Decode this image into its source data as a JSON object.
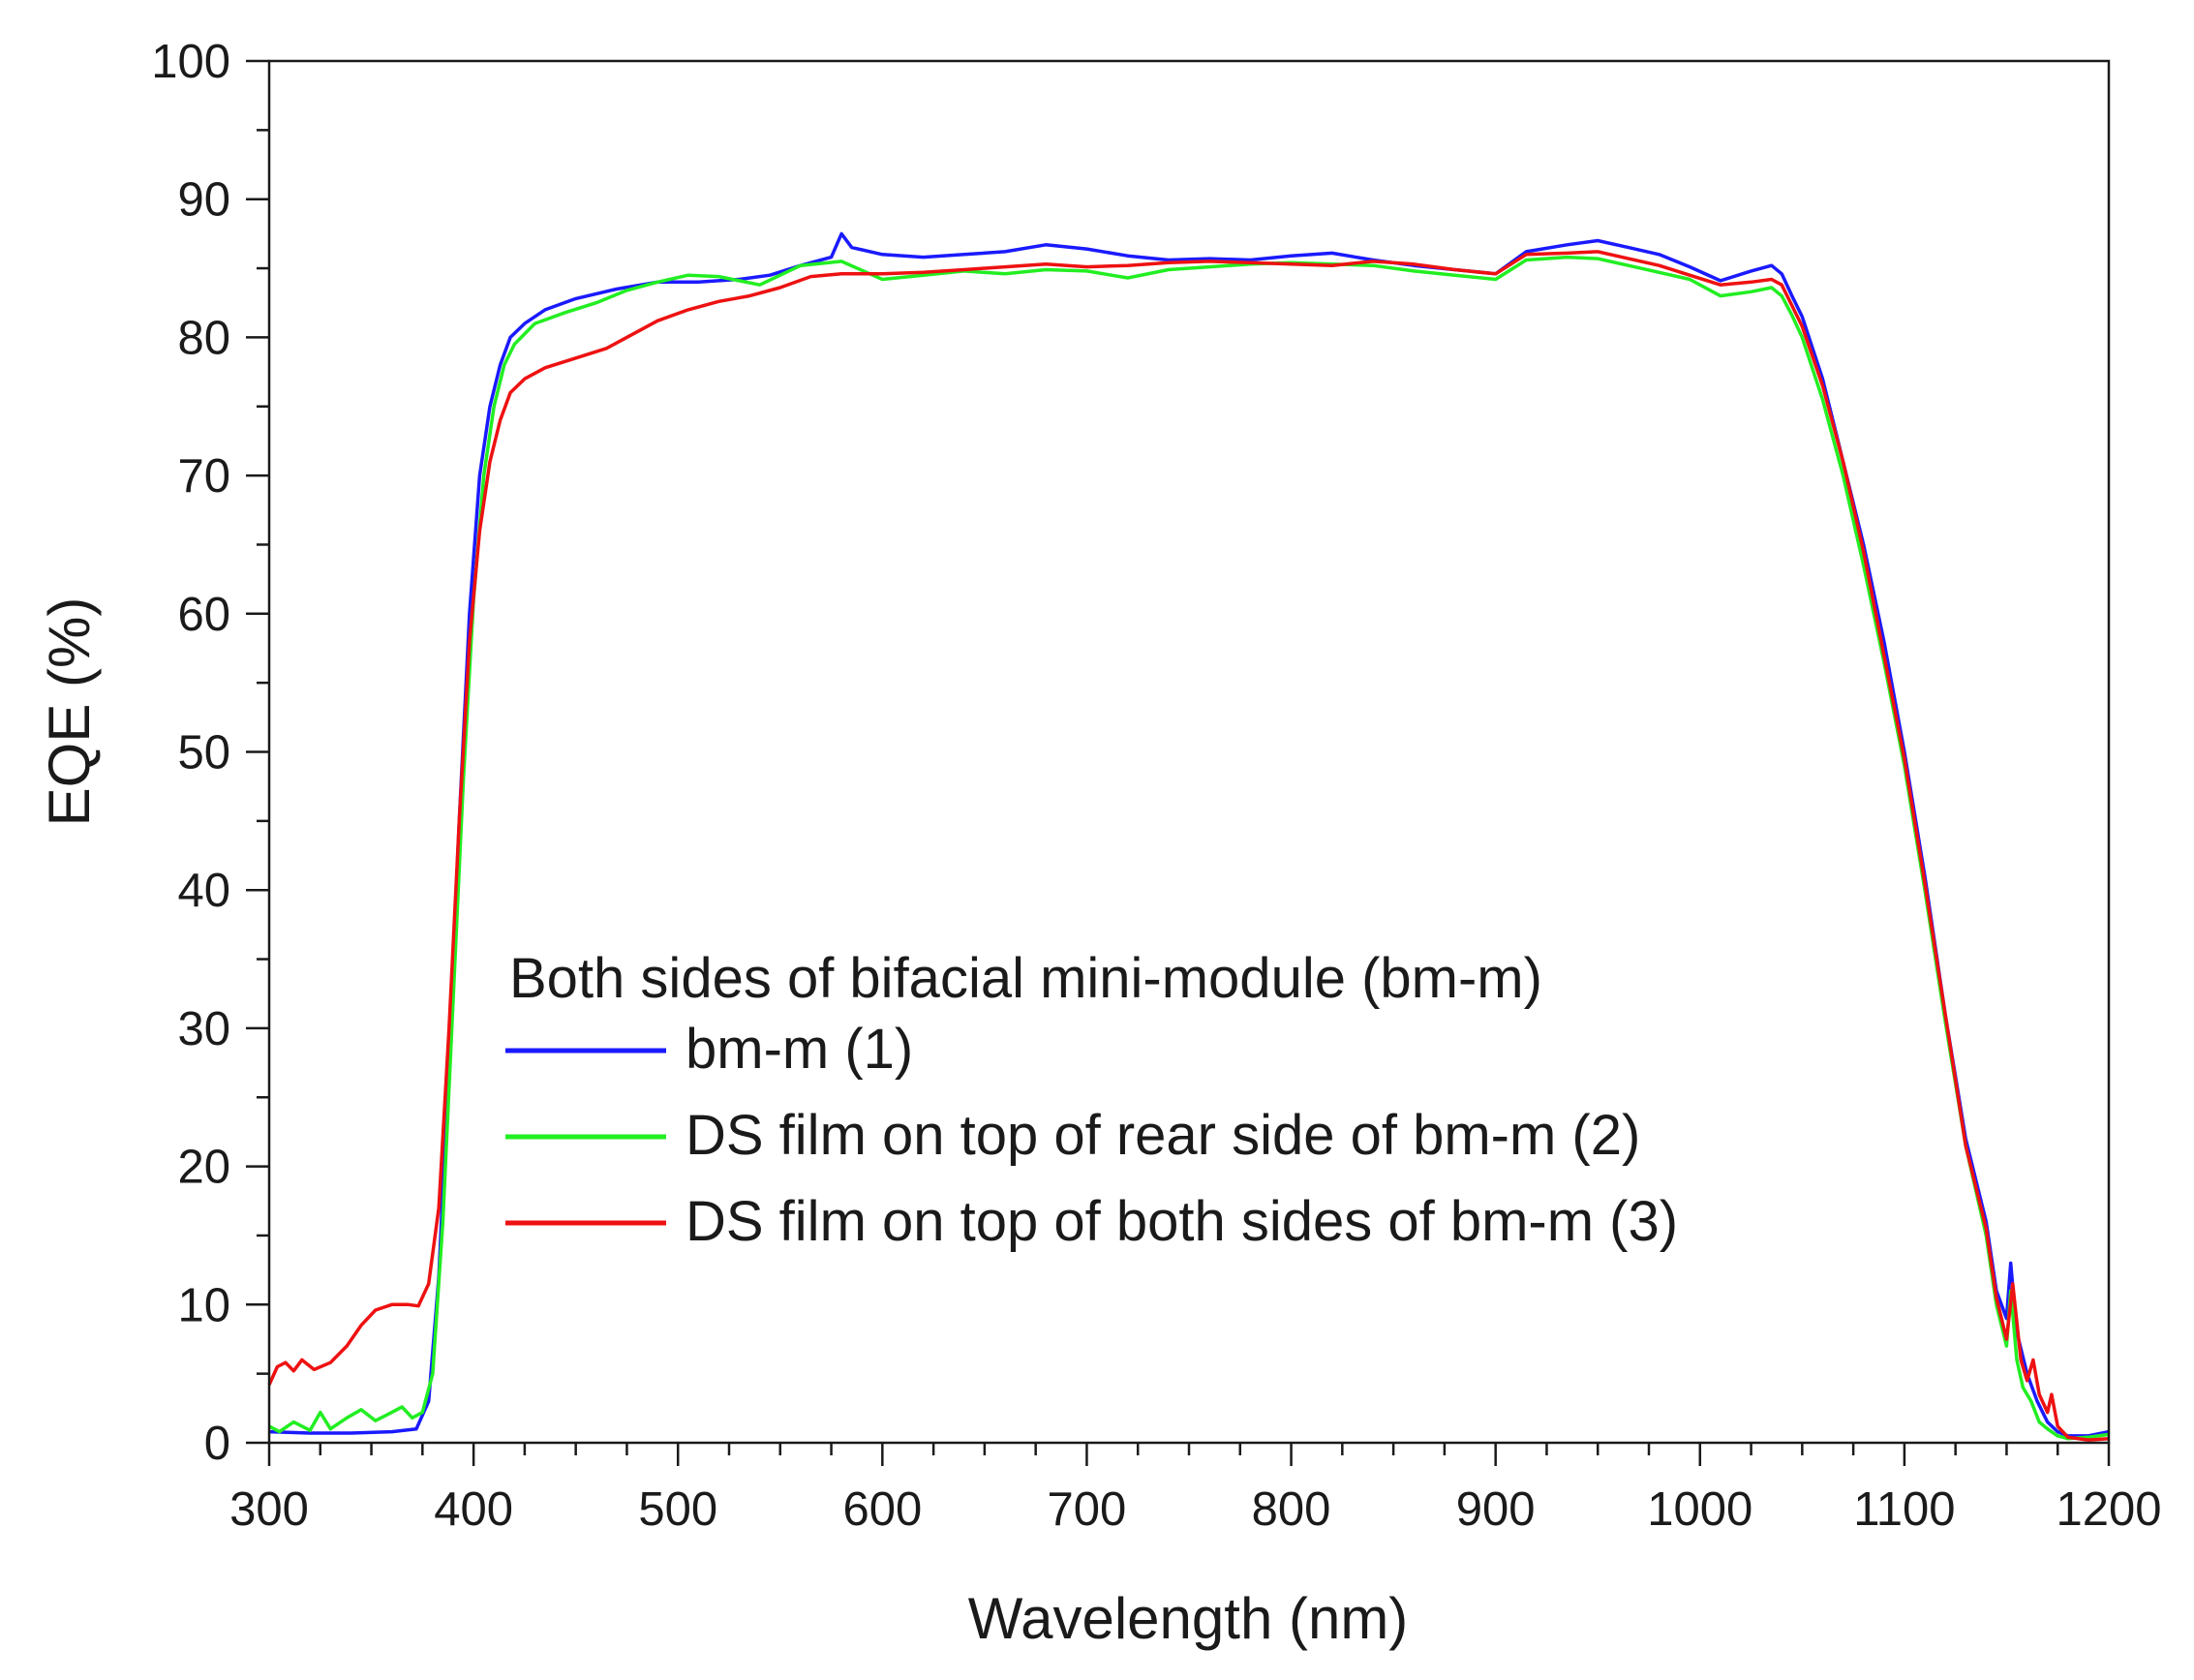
{
  "chart_data": {
    "type": "line",
    "xlabel": "Wavelength (nm)",
    "ylabel": "EQE (%)",
    "xlim": [
      300,
      1200
    ],
    "ylim": [
      0,
      100
    ],
    "x_major_ticks": [
      "300",
      "400",
      "500",
      "600",
      "700",
      "800",
      "900",
      "1000",
      "1100",
      "1200"
    ],
    "y_major_ticks": [
      "0",
      "10",
      "20",
      "30",
      "40",
      "50",
      "60",
      "70",
      "80",
      "90",
      "100"
    ],
    "grid": false,
    "legend": {
      "placement": "lower-center",
      "title": "Both sides of bifacial mini-module (bm-m)"
    },
    "series": [
      {
        "name": "bm-m (1)",
        "color": "#1a1aff",
        "points": [
          [
            300,
            0.8
          ],
          [
            320,
            0.7
          ],
          [
            340,
            0.7
          ],
          [
            360,
            0.8
          ],
          [
            372,
            1.0
          ],
          [
            378,
            3
          ],
          [
            383,
            12
          ],
          [
            388,
            28
          ],
          [
            393,
            45
          ],
          [
            398,
            60
          ],
          [
            403,
            70
          ],
          [
            408,
            75
          ],
          [
            413,
            78
          ],
          [
            418,
            80
          ],
          [
            425,
            81
          ],
          [
            435,
            82
          ],
          [
            450,
            82.8
          ],
          [
            470,
            83.5
          ],
          [
            490,
            84
          ],
          [
            510,
            84
          ],
          [
            530,
            84.2
          ],
          [
            545,
            84.5
          ],
          [
            560,
            85.2
          ],
          [
            575,
            85.8
          ],
          [
            580,
            87.5
          ],
          [
            585,
            86.5
          ],
          [
            600,
            86
          ],
          [
            620,
            85.8
          ],
          [
            640,
            86
          ],
          [
            660,
            86.2
          ],
          [
            680,
            86.7
          ],
          [
            700,
            86.4
          ],
          [
            720,
            85.9
          ],
          [
            740,
            85.6
          ],
          [
            760,
            85.7
          ],
          [
            780,
            85.6
          ],
          [
            800,
            85.9
          ],
          [
            820,
            86.1
          ],
          [
            840,
            85.6
          ],
          [
            860,
            85.2
          ],
          [
            880,
            84.9
          ],
          [
            900,
            84.6
          ],
          [
            915,
            86.2
          ],
          [
            935,
            86.7
          ],
          [
            950,
            87
          ],
          [
            965,
            86.5
          ],
          [
            980,
            86
          ],
          [
            995,
            85.1
          ],
          [
            1010,
            84.1
          ],
          [
            1025,
            84.8
          ],
          [
            1035,
            85.2
          ],
          [
            1040,
            84.6
          ],
          [
            1045,
            83
          ],
          [
            1050,
            81.5
          ],
          [
            1060,
            77
          ],
          [
            1070,
            71
          ],
          [
            1080,
            65
          ],
          [
            1090,
            58
          ],
          [
            1100,
            50
          ],
          [
            1110,
            41
          ],
          [
            1120,
            31
          ],
          [
            1130,
            22
          ],
          [
            1140,
            16
          ],
          [
            1145,
            11
          ],
          [
            1150,
            9
          ],
          [
            1152,
            13
          ],
          [
            1155,
            8
          ],
          [
            1160,
            5
          ],
          [
            1165,
            3
          ],
          [
            1170,
            1.5
          ],
          [
            1175,
            0.8
          ],
          [
            1180,
            0.5
          ],
          [
            1190,
            0.5
          ],
          [
            1200,
            0.8
          ]
        ]
      },
      {
        "name": "DS film on top of rear side of bm-m (2)",
        "color": "#22ee22",
        "points": [
          [
            300,
            1.2
          ],
          [
            305,
            0.8
          ],
          [
            312,
            1.5
          ],
          [
            320,
            0.9
          ],
          [
            325,
            2.2
          ],
          [
            330,
            1.0
          ],
          [
            338,
            1.8
          ],
          [
            345,
            2.4
          ],
          [
            352,
            1.6
          ],
          [
            360,
            2.2
          ],
          [
            365,
            2.6
          ],
          [
            370,
            1.8
          ],
          [
            375,
            2.2
          ],
          [
            380,
            5
          ],
          [
            385,
            16
          ],
          [
            390,
            32
          ],
          [
            395,
            48
          ],
          [
            400,
            61
          ],
          [
            405,
            70
          ],
          [
            410,
            75
          ],
          [
            415,
            78
          ],
          [
            420,
            79.5
          ],
          [
            430,
            81
          ],
          [
            445,
            81.8
          ],
          [
            460,
            82.5
          ],
          [
            475,
            83.4
          ],
          [
            490,
            84
          ],
          [
            505,
            84.5
          ],
          [
            520,
            84.4
          ],
          [
            540,
            83.8
          ],
          [
            560,
            85.2
          ],
          [
            580,
            85.5
          ],
          [
            600,
            84.2
          ],
          [
            620,
            84.5
          ],
          [
            640,
            84.8
          ],
          [
            660,
            84.6
          ],
          [
            680,
            84.9
          ],
          [
            700,
            84.8
          ],
          [
            720,
            84.3
          ],
          [
            740,
            84.9
          ],
          [
            760,
            85.1
          ],
          [
            780,
            85.3
          ],
          [
            800,
            85.4
          ],
          [
            820,
            85.3
          ],
          [
            840,
            85.2
          ],
          [
            860,
            84.8
          ],
          [
            880,
            84.5
          ],
          [
            900,
            84.2
          ],
          [
            915,
            85.6
          ],
          [
            935,
            85.8
          ],
          [
            950,
            85.7
          ],
          [
            965,
            85.2
          ],
          [
            980,
            84.7
          ],
          [
            995,
            84.2
          ],
          [
            1010,
            83
          ],
          [
            1025,
            83.3
          ],
          [
            1035,
            83.6
          ],
          [
            1040,
            83
          ],
          [
            1045,
            81.6
          ],
          [
            1050,
            80
          ],
          [
            1060,
            75.5
          ],
          [
            1070,
            70
          ],
          [
            1080,
            63.5
          ],
          [
            1090,
            56.5
          ],
          [
            1100,
            49
          ],
          [
            1110,
            40
          ],
          [
            1120,
            30.5
          ],
          [
            1130,
            21.5
          ],
          [
            1140,
            15
          ],
          [
            1145,
            10
          ],
          [
            1150,
            7
          ],
          [
            1152,
            11
          ],
          [
            1155,
            6
          ],
          [
            1158,
            4
          ],
          [
            1162,
            3
          ],
          [
            1166,
            1.5
          ],
          [
            1170,
            1.0
          ],
          [
            1175,
            0.5
          ],
          [
            1180,
            0.3
          ],
          [
            1190,
            0.4
          ],
          [
            1200,
            0.6
          ]
        ]
      },
      {
        "name": "DS film on top of both sides of bm-m (3)",
        "color": "#ee1111",
        "points": [
          [
            300,
            4.2
          ],
          [
            304,
            5.5
          ],
          [
            308,
            5.8
          ],
          [
            312,
            5.2
          ],
          [
            316,
            6.0
          ],
          [
            322,
            5.3
          ],
          [
            330,
            5.8
          ],
          [
            338,
            7.0
          ],
          [
            345,
            8.5
          ],
          [
            352,
            9.6
          ],
          [
            360,
            10.0
          ],
          [
            368,
            10.0
          ],
          [
            373,
            9.9
          ],
          [
            378,
            11.5
          ],
          [
            383,
            17
          ],
          [
            388,
            30
          ],
          [
            393,
            45
          ],
          [
            398,
            58
          ],
          [
            403,
            66
          ],
          [
            408,
            71
          ],
          [
            413,
            74
          ],
          [
            418,
            76
          ],
          [
            425,
            77
          ],
          [
            435,
            77.8
          ],
          [
            450,
            78.5
          ],
          [
            465,
            79.2
          ],
          [
            475,
            80
          ],
          [
            490,
            81.2
          ],
          [
            505,
            82
          ],
          [
            520,
            82.6
          ],
          [
            535,
            83
          ],
          [
            550,
            83.6
          ],
          [
            565,
            84.4
          ],
          [
            580,
            84.6
          ],
          [
            600,
            84.6
          ],
          [
            620,
            84.7
          ],
          [
            640,
            84.9
          ],
          [
            660,
            85.1
          ],
          [
            680,
            85.3
          ],
          [
            700,
            85.1
          ],
          [
            720,
            85.2
          ],
          [
            740,
            85.4
          ],
          [
            760,
            85.5
          ],
          [
            780,
            85.4
          ],
          [
            800,
            85.3
          ],
          [
            820,
            85.2
          ],
          [
            840,
            85.5
          ],
          [
            860,
            85.3
          ],
          [
            880,
            84.9
          ],
          [
            900,
            84.6
          ],
          [
            915,
            86
          ],
          [
            935,
            86.1
          ],
          [
            950,
            86.2
          ],
          [
            965,
            85.7
          ],
          [
            980,
            85.2
          ],
          [
            995,
            84.5
          ],
          [
            1010,
            83.8
          ],
          [
            1025,
            84
          ],
          [
            1035,
            84.2
          ],
          [
            1040,
            83.8
          ],
          [
            1045,
            82.3
          ],
          [
            1050,
            80.8
          ],
          [
            1060,
            76.5
          ],
          [
            1070,
            71
          ],
          [
            1080,
            64.5
          ],
          [
            1090,
            57
          ],
          [
            1100,
            49.5
          ],
          [
            1110,
            40.5
          ],
          [
            1120,
            31
          ],
          [
            1130,
            21.5
          ],
          [
            1140,
            15.5
          ],
          [
            1145,
            10.5
          ],
          [
            1150,
            7.5
          ],
          [
            1153,
            11.5
          ],
          [
            1157,
            6
          ],
          [
            1160,
            4.5
          ],
          [
            1163,
            6
          ],
          [
            1166,
            3.5
          ],
          [
            1170,
            2.2
          ],
          [
            1172,
            3.5
          ],
          [
            1175,
            1.2
          ],
          [
            1180,
            0.4
          ],
          [
            1190,
            0.2
          ],
          [
            1200,
            0.3
          ]
        ]
      }
    ]
  }
}
